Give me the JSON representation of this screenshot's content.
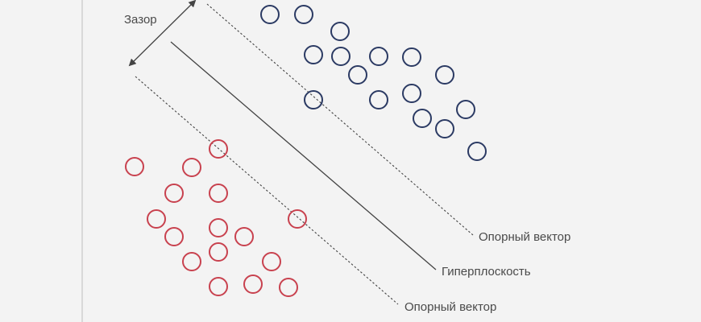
{
  "labels": {
    "margin": "Зазор",
    "hyperplane": "Гиперплоскость",
    "support_vector_upper": "Опорный вектор",
    "support_vector_lower": "Опорный вектор"
  },
  "colors": {
    "background": "#f3f3f3",
    "class_a": "#2b3a63",
    "class_b": "#c8414e",
    "lines": "#444444",
    "left_rule": "#cfcfcf"
  }
}
